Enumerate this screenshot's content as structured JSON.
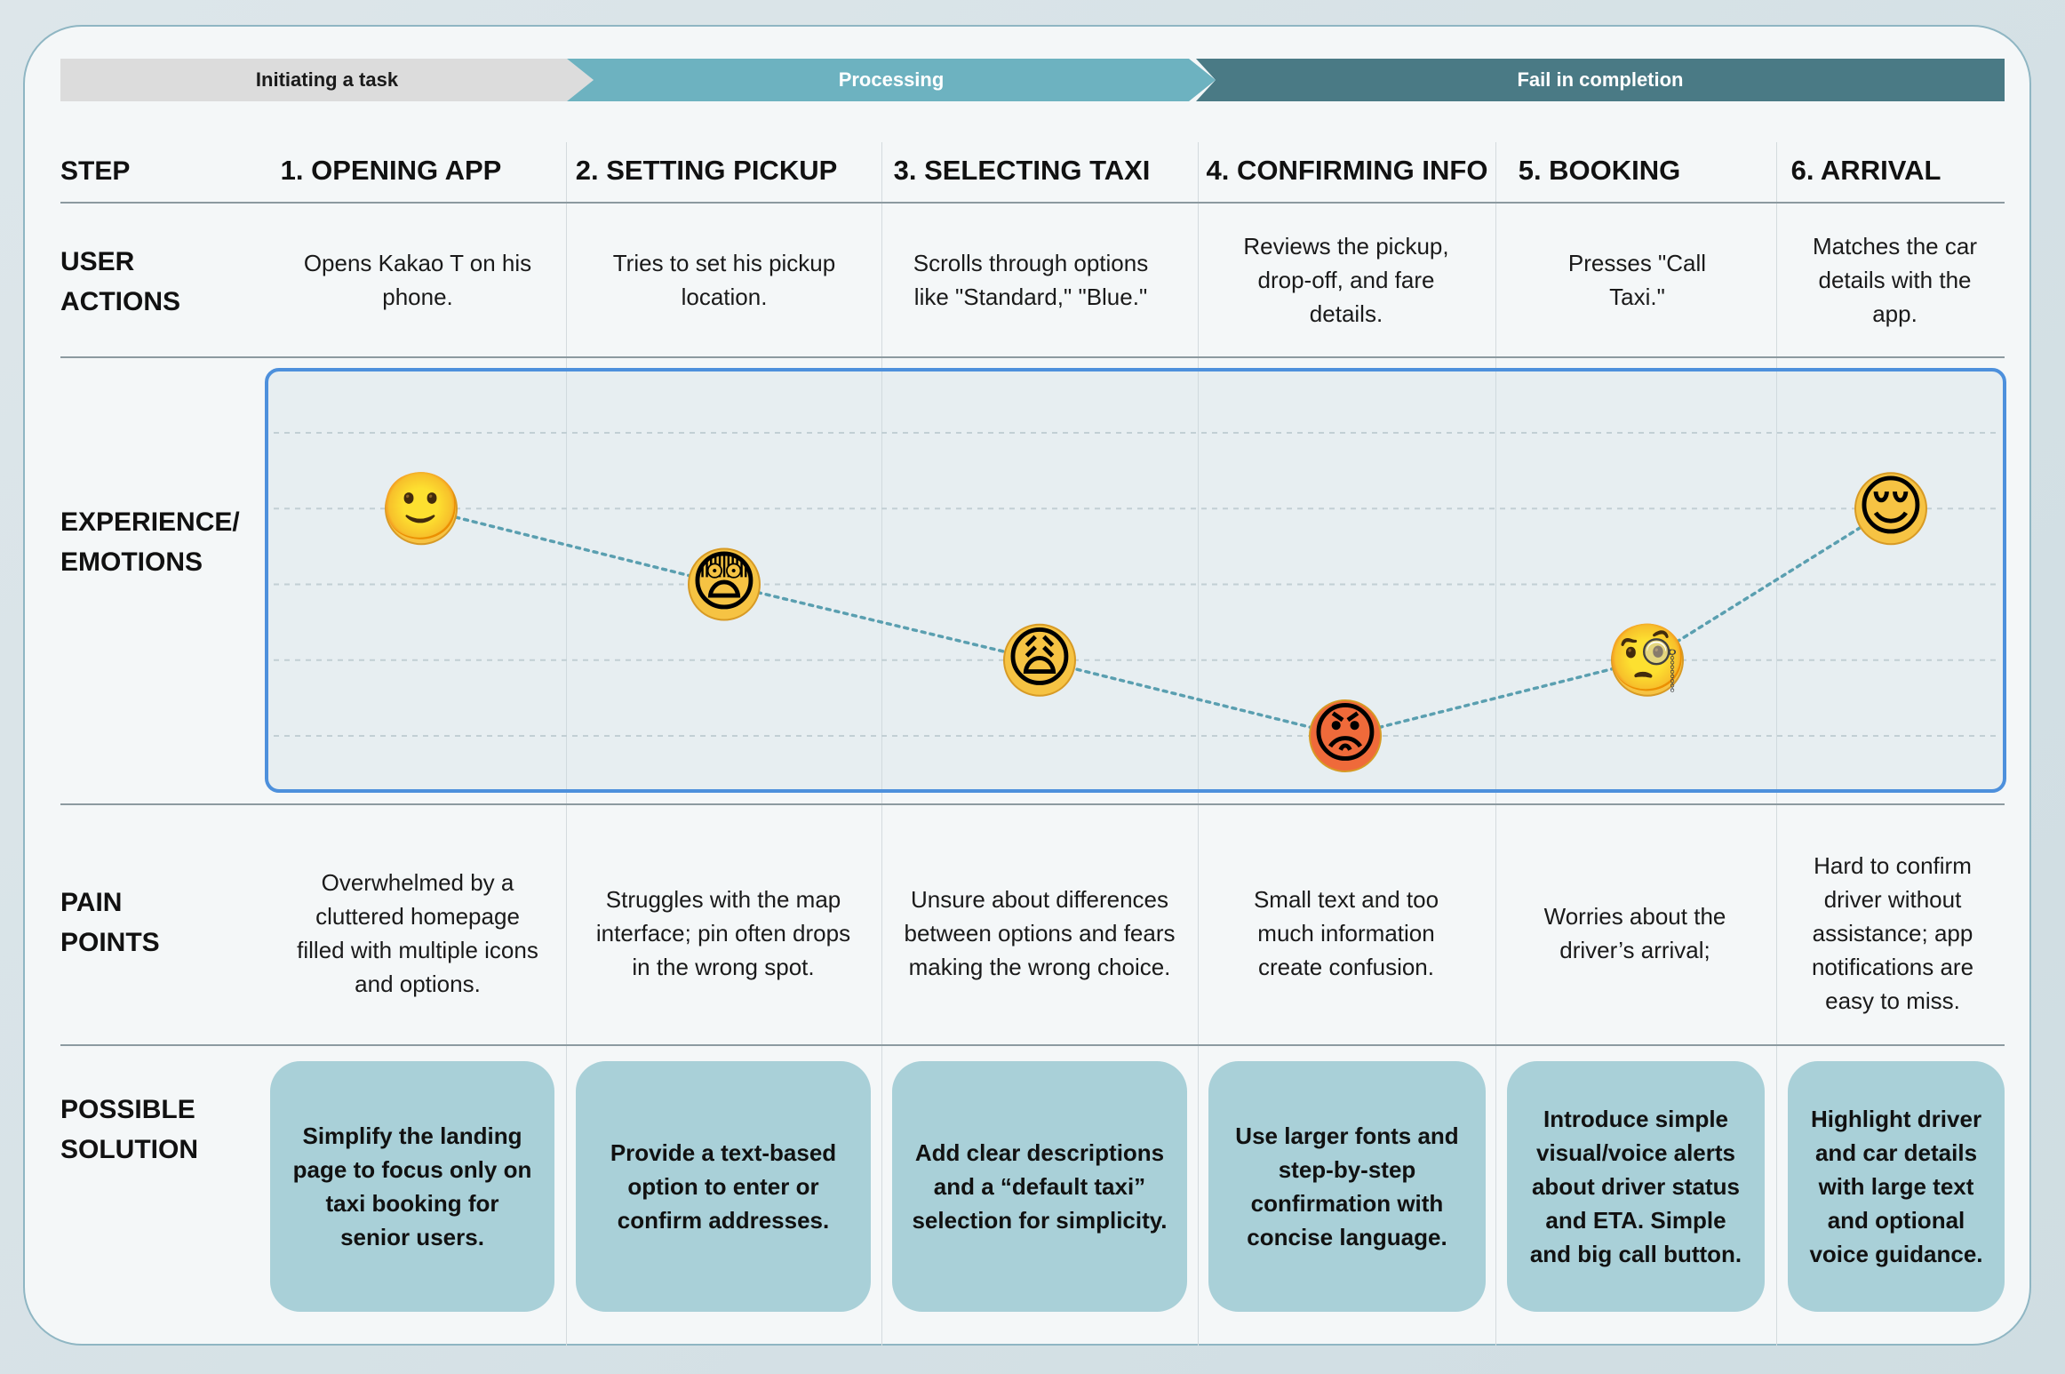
{
  "phases": [
    "Initiating a task",
    "Processing",
    "Fail in completion"
  ],
  "row_labels": {
    "step": "STEP",
    "user_actions": [
      "USER",
      "ACTIONS"
    ],
    "experience": [
      "EXPERIENCE/",
      "EMOTIONS"
    ],
    "pain_points": [
      "PAIN",
      "POINTS"
    ],
    "solution": [
      "POSSIBLE",
      "SOLUTION"
    ]
  },
  "steps": [
    {
      "title": "1. OPENING APP",
      "action": "Opens Kakao T on his phone.",
      "emoji": "🙂",
      "pain": "Overwhelmed by a cluttered homepage filled with multiple icons and options.",
      "solution": "Simplify the landing page to focus only on taxi booking for senior users."
    },
    {
      "title": "2. SETTING PICKUP",
      "action": "Tries to set his pickup location.",
      "emoji": "😨",
      "pain": "Struggles with the map interface; pin often drops in the wrong spot.",
      "solution": "Provide a text-based option to enter or confirm addresses."
    },
    {
      "title": "3. SELECTING TAXI",
      "action": "Scrolls through options like \"Standard,\" \"Blue.\"",
      "emoji": "😩",
      "pain": "Unsure about differences between options and fears making the wrong choice.",
      "solution": "Add clear descriptions and a “default taxi” selection for simplicity."
    },
    {
      "title": "4. CONFIRMING INFO",
      "action": "Reviews the pickup, drop-off, and fare details.",
      "emoji": "😡",
      "pain": "Small text and too much information create confusion.",
      "solution": "Use larger fonts and step-by-step confirmation with concise language."
    },
    {
      "title": "5. BOOKING",
      "action": "Presses \"Call Taxi.\"",
      "emoji": "🧐",
      "pain": "Worries about the driver’s arrival;",
      "solution": "Introduce simple visual/voice alerts about driver status and ETA. Simple and big call button."
    },
    {
      "title": "6. ARRIVAL",
      "action": "Matches the car details with the app.",
      "emoji": "😌",
      "pain": "Hard to confirm driver without assistance; app notifications are easy to miss.",
      "solution": "Highlight driver and car details with large text and optional voice guidance."
    }
  ],
  "chart_data": {
    "type": "line",
    "categories": [
      "1. OPENING APP",
      "2. SETTING PICKUP",
      "3. SELECTING TAXI",
      "4. CONFIRMING INFO",
      "5. BOOKING",
      "6. ARRIVAL"
    ],
    "values": [
      4,
      3,
      2,
      1,
      2,
      4
    ],
    "ylim": [
      1,
      5
    ],
    "grid": true,
    "line_color": "#5a9fb0"
  }
}
